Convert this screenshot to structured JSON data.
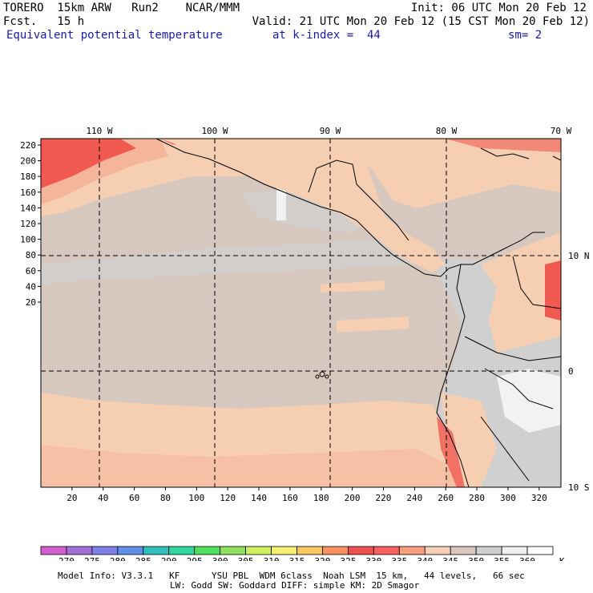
{
  "header": {
    "model_name": "TORERO  15km ARW   Run2    NCAR/MMM",
    "forecast": "Fcst.   15 h",
    "init_time": "Init: 06 UTC Mon 20 Feb 12",
    "valid_time": "Valid: 21 UTC Mon 20 Feb 12 (15 CST Mon 20 Feb 12)",
    "field_name": "Equivalent potential temperature",
    "level": "at k-index =  44",
    "smoothing": "sm= 2"
  },
  "map": {
    "longitude_labels": [
      "110 W",
      "100 W",
      "90 W",
      "80 W",
      "70 W"
    ],
    "latitude_labels": [
      "10 N",
      "0",
      "10 S"
    ],
    "y_axis_ticks": [
      "220",
      "200",
      "180",
      "160",
      "140",
      "120",
      "100",
      "80",
      "60",
      "40",
      "20"
    ],
    "x_axis_ticks": [
      "20",
      "40",
      "60",
      "80",
      "100",
      "120",
      "140",
      "160",
      "180",
      "200",
      "220",
      "240",
      "260",
      "280",
      "300",
      "320"
    ]
  },
  "colorbar": {
    "values": [
      "270",
      "275",
      "280",
      "285",
      "290",
      "295",
      "300",
      "305",
      "310",
      "315",
      "320",
      "325",
      "330",
      "335",
      "340",
      "345",
      "350",
      "355",
      "360"
    ],
    "unit": "K",
    "colors": [
      "#d060d0",
      "#a070d8",
      "#8080e8",
      "#6090e8",
      "#30c0c0",
      "#30d8a0",
      "#50e060",
      "#90e060",
      "#d0f060",
      "#f8f070",
      "#f8c860",
      "#f89060",
      "#f05050",
      "#f86060",
      "#f8a080",
      "#f8d0b8",
      "#d8c8c0",
      "#d0d0d0",
      "#f0f0f0",
      "#ffffff"
    ]
  },
  "footer": {
    "line1": "Model Info: V3.3.1   KF      YSU PBL  WDM 6class  Noah LSM  15 km,   44 levels,   66 sec",
    "line2": "LW: Godd SW: Goddard DIFF: simple KM: 2D Smagor"
  },
  "colors": {
    "ocean_base": "#d7c8bf",
    "salmon": "#f6cfb3",
    "light_salmon": "#f4b59a",
    "red": "#f05a50",
    "gray": "#d0d0d0",
    "white": "#f2f2f2",
    "header_blue": "#1a1aa6"
  }
}
